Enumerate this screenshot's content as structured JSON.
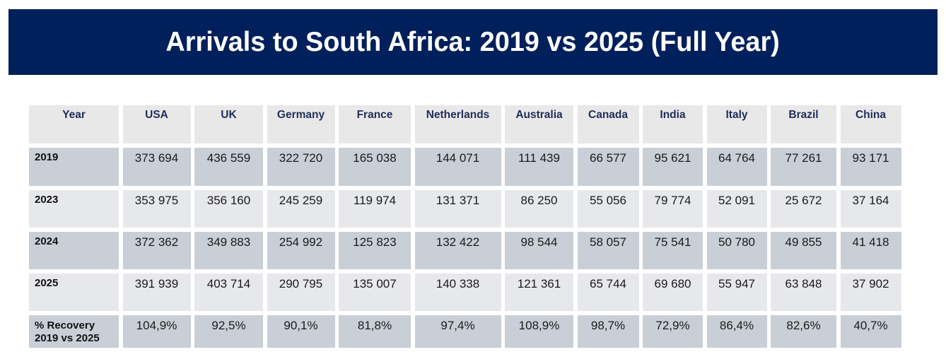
{
  "title": "Arrivals to South Africa: 2019 vs 2025 (Full Year)",
  "colors": {
    "banner": "#00205b",
    "header_cell": "#e8e8e8",
    "row_dark": "#c9cfd7",
    "row_light": "#e7e8ec",
    "header_text": "#1f2d5a"
  },
  "table": {
    "corner_label": "Year",
    "columns": [
      "USA",
      "UK",
      "Germany",
      "France",
      "Netherlands",
      "Australia",
      "Canada",
      "India",
      "Italy",
      "Brazil",
      "China"
    ],
    "rows": [
      {
        "label": "2019",
        "values": [
          "373 694",
          "436 559",
          "322 720",
          "165 038",
          "144 071",
          "111 439",
          "66 577",
          "95 621",
          "64 764",
          "77 261",
          "93 171"
        ]
      },
      {
        "label": "2023",
        "values": [
          "353 975",
          "356 160",
          "245 259",
          "119 974",
          "131 371",
          "86 250",
          "55 056",
          "79 774",
          "52 091",
          "25 672",
          "37 164"
        ]
      },
      {
        "label": "2024",
        "values": [
          "372 362",
          "349 883",
          "254 992",
          "125 823",
          "132 422",
          "98 544",
          "58 057",
          "75 541",
          "50 780",
          "49 855",
          "41 418"
        ]
      },
      {
        "label": "2025",
        "values": [
          "391 939",
          "403 714",
          "290 795",
          "135 007",
          "140 338",
          "121 361",
          "65 744",
          "69 680",
          "55 947",
          "63 848",
          "37 902"
        ]
      },
      {
        "label": "% Recovery 2019 vs 2025",
        "label_line1": "% Recovery",
        "label_line2": "2019 vs 2025",
        "values": [
          "104,9%",
          "92,5%",
          "90,1%",
          "81,8%",
          "97,4%",
          "108,9%",
          "98,7%",
          "72,9%",
          "86,4%",
          "82,6%",
          "40,7%"
        ]
      }
    ]
  }
}
